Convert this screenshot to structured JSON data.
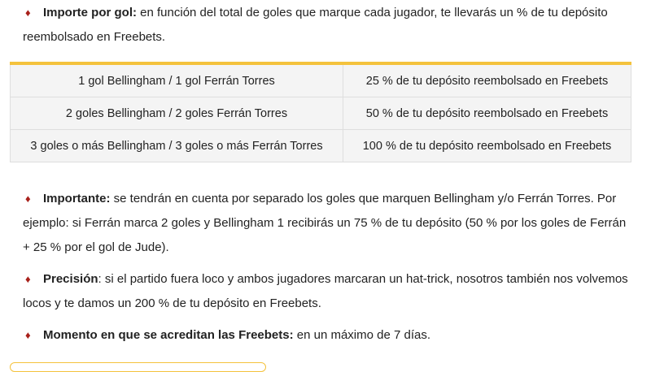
{
  "items": [
    {
      "label": "Importe por gol:",
      "text": " en función del total de goles que marque cada jugador, te llevarás un % de tu depósito reembolsado en Freebets."
    },
    {
      "label": "Importante:",
      "text": " se tendrán en cuenta por separado los goles que marquen Bellingham y/o Ferrán Torres. Por ejemplo: si Ferrán marca 2 goles y Bellingham 1 recibirás un 75 % de tu depósito (50 % por los goles de Ferrán + 25 % por el gol de Jude)."
    },
    {
      "label": "Precisión",
      "text": ": si el partido fuera loco y ambos jugadores marcaran un hat-trick, nosotros también nos volvemos locos y te damos un 200 % de tu depósito en Freebets."
    },
    {
      "label": "Momento en que se acreditan las Freebets:",
      "text": " en un máximo de 7 días."
    }
  ],
  "bullet_glyph": "♦",
  "table": {
    "rows": [
      [
        "1 gol Bellingham / 1 gol Ferrán Torres",
        "25 % de tu depósito reembolsado en Freebets"
      ],
      [
        "2 goles Bellingham / 2 goles Ferrán Torres",
        "50 % de tu depósito reembolsado en Freebets"
      ],
      [
        "3 goles o más Bellingham / 3 goles o más Ferrán Torres",
        "100 % de tu depósito reembolsado en Freebets"
      ]
    ]
  },
  "colors": {
    "accent": "#f4c23c",
    "bullet": "#a8201a"
  }
}
